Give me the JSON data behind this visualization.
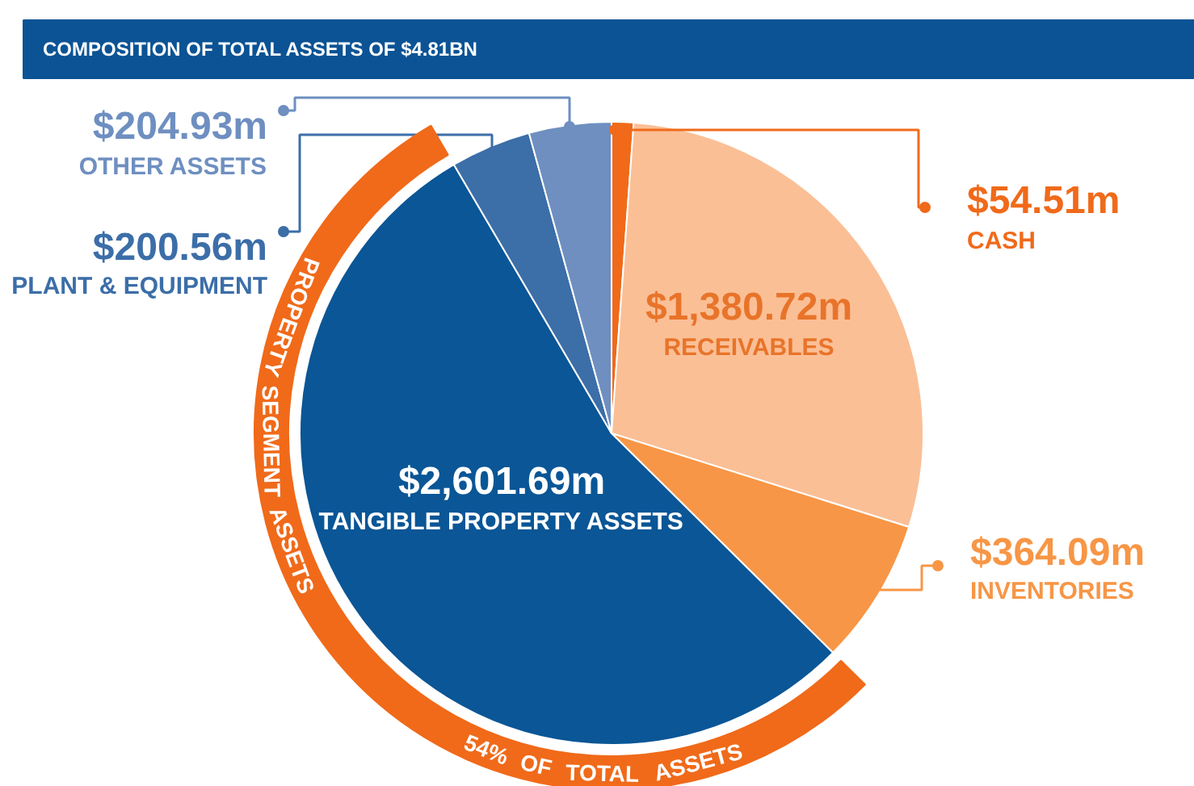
{
  "chart_data": {
    "type": "pie",
    "title": "COMPOSITION OF TOTAL ASSETS OF $4.81BN",
    "categories": [
      "CASH",
      "RECEIVABLES",
      "INVENTORIES",
      "TANGIBLE PROPERTY ASSETS",
      "PLANT & EQUIPMENT",
      "OTHER ASSETS"
    ],
    "values": [
      54.51,
      1380.72,
      364.09,
      2601.69,
      200.56,
      204.93
    ],
    "value_labels": [
      "$54.51m",
      "$1,380.72m",
      "$364.09m",
      "$2,601.69m",
      "$200.56m",
      "$204.93m"
    ],
    "colors": [
      "#f06a1a",
      "#fbbf96",
      "#f79646",
      "#0a5696",
      "#3c6ea8",
      "#6e8fc0"
    ],
    "annotations": [
      "PROPERTY SEGMENT ASSETS",
      "54% OF TOTAL ASSETS"
    ]
  }
}
